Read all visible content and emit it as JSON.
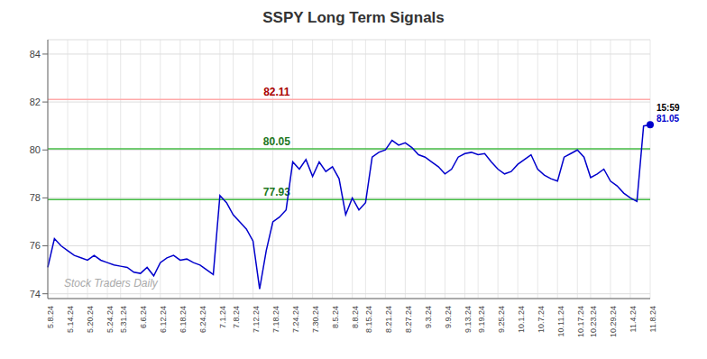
{
  "chart_data": {
    "type": "line",
    "title": "SSPY Long Term Signals",
    "color": "#0000cc",
    "categories": [
      "5.8.24",
      null,
      null,
      "5.14.24",
      null,
      null,
      "5.20.24",
      null,
      null,
      "5.24.24",
      null,
      "5.31.24",
      null,
      null,
      "6.6.24",
      null,
      null,
      "6.12.24",
      null,
      null,
      "6.18.24",
      null,
      null,
      "6.24.24",
      null,
      null,
      "7.1.24",
      null,
      "7.8.24",
      null,
      null,
      "7.12.24",
      null,
      null,
      "7.18.24",
      null,
      null,
      "7.24.24",
      null,
      null,
      "7.30.24",
      null,
      null,
      "8.5.24",
      null,
      null,
      "8.8.24",
      null,
      "8.15.24",
      null,
      null,
      "8.21.24",
      null,
      null,
      "8.27.24",
      null,
      null,
      "9.3.24",
      null,
      null,
      "9.9.24",
      null,
      null,
      "9.13.24",
      null,
      "9.19.24",
      null,
      null,
      "9.25.24",
      null,
      null,
      "10.1.24",
      null,
      null,
      "10.7.24",
      null,
      null,
      "10.11.24",
      null,
      null,
      "10.17.24",
      null,
      "10.23.24",
      null,
      null,
      "10.29.24",
      null,
      null,
      "11.4.24",
      null,
      null,
      "11.8.24"
    ],
    "values": [
      75.1,
      76.3,
      76.0,
      75.8,
      75.6,
      75.5,
      75.4,
      75.6,
      75.4,
      75.3,
      75.2,
      75.15,
      75.1,
      74.9,
      74.85,
      75.1,
      74.75,
      75.3,
      75.5,
      75.6,
      75.4,
      75.45,
      75.3,
      75.2,
      75.0,
      74.8,
      78.1,
      77.8,
      77.3,
      77.0,
      76.7,
      76.2,
      74.2,
      75.8,
      77.0,
      77.2,
      77.5,
      79.5,
      79.2,
      79.6,
      78.9,
      79.5,
      79.1,
      79.3,
      78.8,
      77.3,
      78.0,
      77.5,
      77.8,
      79.7,
      79.9,
      80.0,
      80.4,
      80.2,
      80.3,
      80.1,
      79.8,
      79.7,
      79.5,
      79.3,
      79.0,
      79.2,
      79.7,
      79.85,
      79.9,
      79.8,
      79.85,
      79.5,
      79.2,
      79.0,
      79.1,
      79.4,
      79.6,
      79.8,
      79.2,
      78.95,
      78.8,
      78.7,
      79.7,
      79.85,
      80.0,
      79.7,
      78.85,
      79.0,
      79.2,
      78.7,
      78.5,
      78.2,
      78.0,
      77.85,
      81.0,
      81.05
    ],
    "ylim": [
      73.8,
      84.6
    ],
    "yticks": [
      74,
      76,
      78,
      80,
      82,
      84
    ],
    "grid": true,
    "reference_lines": [
      {
        "value": 82.11,
        "label": "82.11",
        "color": "#ffaaaa",
        "label_color": "#aa0000"
      },
      {
        "value": 80.05,
        "label": "80.05",
        "color": "#44bb44",
        "label_color": "#227722"
      },
      {
        "value": 77.93,
        "label": "77.93",
        "color": "#44bb44",
        "label_color": "#227722"
      }
    ],
    "annotations": [
      {
        "text": "15:59",
        "color": "#000000"
      },
      {
        "text": "81.05",
        "color": "#0000cc"
      }
    ],
    "watermark": {
      "text": "Stock Traders Daily",
      "color": "#aaaaaa"
    }
  }
}
